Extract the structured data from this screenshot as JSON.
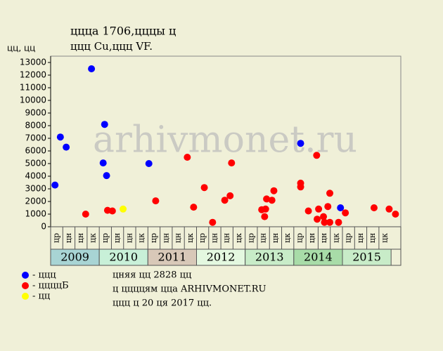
{
  "chart_data": {
    "type": "scatter",
    "title": "ццца 1706,цццы ц",
    "subtitle": "ццц Cu,ццц VF.",
    "y_label": "цц, цц",
    "watermark": "arhivmonet.ru",
    "xlim": [
      2009,
      2016.2
    ],
    "ylim": [
      0,
      13500
    ],
    "yticks": [
      0,
      1000,
      2000,
      3000,
      4000,
      5000,
      6000,
      7000,
      8000,
      9000,
      10000,
      11000,
      12000,
      13000
    ],
    "xticks": [
      {
        "value": 2009,
        "label": "2009"
      },
      {
        "value": 2010,
        "label": "2010"
      },
      {
        "value": 2011,
        "label": "2011"
      },
      {
        "value": 2012,
        "label": "2012"
      },
      {
        "value": 2013,
        "label": "2013"
      },
      {
        "value": 2014,
        "label": "2014"
      },
      {
        "value": 2015,
        "label": "2015"
      }
    ],
    "year_colors": [
      "#a8d4d4",
      "#c8f0d8",
      "#d8c8b8",
      "#e4f8e0",
      "#c8ecc8",
      "#a8dca8",
      "#c8ecc8"
    ],
    "quarter_labels": [
      "цр",
      "цн",
      "цн",
      "цк"
    ],
    "series": [
      {
        "name": "- ццц",
        "color": "#0000ff",
        "x": [
          2009.09,
          2009.2,
          2009.32,
          2009.84,
          2010.11,
          2010.08,
          2010.15,
          2011.02,
          2014.14,
          2014.96
        ],
        "values": [
          3300,
          7100,
          6300,
          12500,
          8100,
          5050,
          4050,
          5000,
          6600,
          1500
        ]
      },
      {
        "name": "- ццццБ",
        "color": "#ff0000",
        "x": [
          2009.72,
          2010.17,
          2010.27,
          2011.16,
          2011.81,
          2011.94,
          2012.16,
          2012.33,
          2012.58,
          2012.69,
          2012.72,
          2013.34,
          2013.42,
          2013.4,
          2013.44,
          2013.55,
          2013.59,
          2014.14,
          2014.14,
          2014.3,
          2014.48,
          2014.47,
          2014.51,
          2014.61,
          2014.63,
          2014.7,
          2014.74,
          2014.74,
          2014.92,
          2015.06,
          2015.65,
          2015.96,
          2016.09
        ],
        "values": [
          1000,
          1300,
          1250,
          2050,
          5500,
          1550,
          3100,
          350,
          2100,
          2450,
          5050,
          1350,
          1400,
          800,
          2200,
          2100,
          2850,
          3450,
          3150,
          1250,
          600,
          5650,
          1400,
          800,
          350,
          1600,
          2650,
          350,
          350,
          1100,
          1500,
          1400,
          1000
        ]
      },
      {
        "name": "- цц",
        "color": "#ffff00",
        "x": [
          2010.49
        ],
        "values": [
          1400
        ]
      }
    ],
    "notes": [
      "цняя цц 2828 цц",
      "ц ццццям цца ARHIVMONET.RU",
      "ццц ц 20 ця 2017 цц."
    ]
  }
}
